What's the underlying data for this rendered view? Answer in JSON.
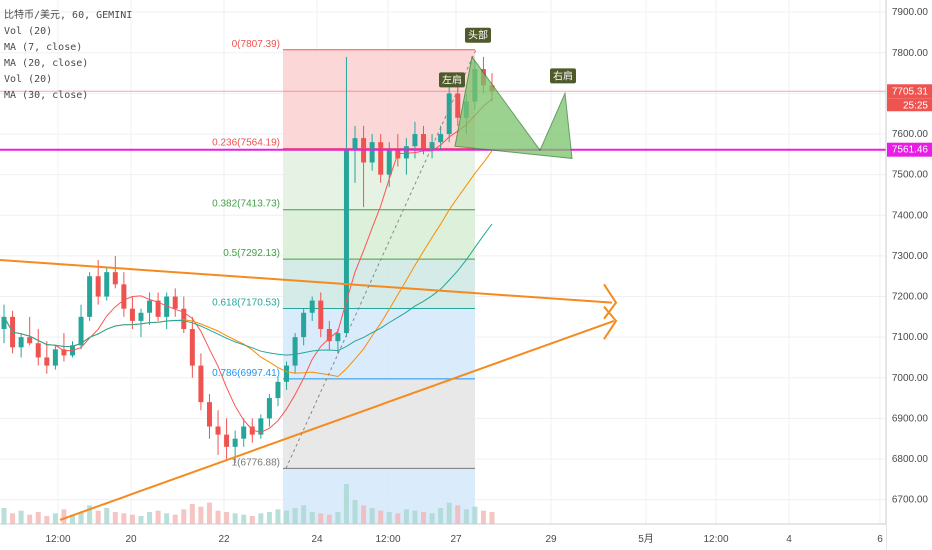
{
  "legend": {
    "symbol": "比特币/美元, 60, GEMINI",
    "vol1": "Vol (20)",
    "ma1": "MA (7, close)",
    "ma2": "MA (20, close)",
    "vol2": "Vol (20)",
    "ma3": "MA (30, close)"
  },
  "colors": {
    "up": "#26a69a",
    "down": "#ef5350",
    "ma7": "#ff5252",
    "ma20": "#fb8c00",
    "ma30": "#26a69a",
    "neckline": "#e91ee6",
    "trendline": "#f58a1f",
    "pattern_fill": "#7cc36a",
    "badge": "#4e5a2a"
  },
  "chart_data": {
    "type": "candlestick",
    "symbol": "比特币/美元",
    "interval": "60",
    "exchange": "GEMINI",
    "y_axis": {
      "ticks": [
        6700,
        6800,
        6900,
        7000,
        7100,
        7200,
        7300,
        7400,
        7500,
        7600,
        7700,
        7800,
        7900
      ],
      "tick_labels": [
        "6700.00",
        "6800.00",
        "6900.00",
        "7000.00",
        "7100.00",
        "7200.00",
        "7300.00",
        "7400.00",
        "7500.00",
        "7600.00",
        "7700.00",
        "7800.00",
        "7900.00"
      ],
      "range": [
        6640,
        7930
      ]
    },
    "x_axis": {
      "tick_labels": [
        "12:00",
        "20",
        "22",
        "24",
        "12:00",
        "27",
        "29",
        "5月",
        "12:00",
        "4",
        "6"
      ]
    },
    "price_markers": [
      {
        "value": 7705.31,
        "label": "7705.31",
        "countdown": "25:25",
        "color": "#ef5350"
      },
      {
        "value": 7561.46,
        "label": "7561.46",
        "color": "#e91ee6"
      }
    ],
    "fibonacci": {
      "high": 7807.39,
      "low": 6776.88,
      "levels": [
        {
          "ratio": 0,
          "price": 7807.39,
          "label": "0(7807.39)",
          "color": "#ef5350"
        },
        {
          "ratio": 0.236,
          "price": 7564.19,
          "label": "0.236(7564.19)",
          "color": "#ef5350"
        },
        {
          "ratio": 0.382,
          "price": 7413.73,
          "label": "0.382(7413.73)",
          "color": "#43a047"
        },
        {
          "ratio": 0.5,
          "price": 7292.13,
          "label": "0.5(7292.13)",
          "color": "#43a047"
        },
        {
          "ratio": 0.618,
          "price": 7170.53,
          "label": "0.618(7170.53)",
          "color": "#26a69a"
        },
        {
          "ratio": 0.786,
          "price": 6997.41,
          "label": "0.786(6997.41)",
          "color": "#2196f3"
        },
        {
          "ratio": 1,
          "price": 6776.88,
          "label": "1(6776.88)",
          "color": "#787878"
        }
      ]
    },
    "annotations": [
      {
        "label": "左肩",
        "role": "left-shoulder"
      },
      {
        "label": "头部",
        "role": "head"
      },
      {
        "label": "右肩",
        "role": "right-shoulder"
      }
    ],
    "candles": [
      [
        7120,
        7180,
        7085,
        7150
      ],
      [
        7150,
        7165,
        7060,
        7075
      ],
      [
        7075,
        7110,
        7050,
        7100
      ],
      [
        7100,
        7150,
        7080,
        7085
      ],
      [
        7085,
        7120,
        7030,
        7050
      ],
      [
        7050,
        7090,
        7010,
        7030
      ],
      [
        7030,
        7080,
        7020,
        7070
      ],
      [
        7070,
        7110,
        7040,
        7055
      ],
      [
        7055,
        7090,
        7050,
        7080
      ],
      [
        7080,
        7180,
        7070,
        7150
      ],
      [
        7150,
        7260,
        7140,
        7250
      ],
      [
        7250,
        7290,
        7180,
        7200
      ],
      [
        7200,
        7270,
        7190,
        7260
      ],
      [
        7260,
        7300,
        7220,
        7230
      ],
      [
        7230,
        7260,
        7150,
        7170
      ],
      [
        7170,
        7200,
        7120,
        7140
      ],
      [
        7140,
        7170,
        7100,
        7160
      ],
      [
        7160,
        7210,
        7130,
        7190
      ],
      [
        7190,
        7210,
        7140,
        7150
      ],
      [
        7150,
        7210,
        7120,
        7200
      ],
      [
        7200,
        7220,
        7150,
        7170
      ],
      [
        7170,
        7200,
        7110,
        7120
      ],
      [
        7120,
        7150,
        7000,
        7030
      ],
      [
        7030,
        7060,
        6920,
        6940
      ],
      [
        6940,
        6960,
        6850,
        6880
      ],
      [
        6880,
        6920,
        6810,
        6860
      ],
      [
        6860,
        6900,
        6800,
        6830
      ],
      [
        6830,
        6870,
        6790,
        6850
      ],
      [
        6850,
        6900,
        6830,
        6880
      ],
      [
        6880,
        6900,
        6840,
        6860
      ],
      [
        6860,
        6910,
        6850,
        6900
      ],
      [
        6900,
        6960,
        6880,
        6950
      ],
      [
        6950,
        7000,
        6930,
        6990
      ],
      [
        6990,
        7040,
        6970,
        7030
      ],
      [
        7030,
        7110,
        7010,
        7100
      ],
      [
        7100,
        7170,
        7080,
        7160
      ],
      [
        7160,
        7200,
        7140,
        7190
      ],
      [
        7190,
        7210,
        7100,
        7120
      ],
      [
        7120,
        7140,
        7070,
        7090
      ],
      [
        7090,
        7120,
        7060,
        7110
      ],
      [
        7110,
        7790,
        7100,
        7560
      ],
      [
        7560,
        7620,
        7480,
        7590
      ],
      [
        7590,
        7620,
        7420,
        7530
      ],
      [
        7530,
        7600,
        7510,
        7580
      ],
      [
        7580,
        7600,
        7480,
        7500
      ],
      [
        7500,
        7580,
        7470,
        7560
      ],
      [
        7560,
        7600,
        7520,
        7540
      ],
      [
        7540,
        7590,
        7500,
        7570
      ],
      [
        7570,
        7630,
        7540,
        7600
      ],
      [
        7600,
        7620,
        7550,
        7560
      ],
      [
        7560,
        7600,
        7540,
        7580
      ],
      [
        7580,
        7620,
        7560,
        7600
      ],
      [
        7600,
        7720,
        7580,
        7700
      ],
      [
        7700,
        7740,
        7620,
        7640
      ],
      [
        7640,
        7700,
        7600,
        7680
      ],
      [
        7680,
        7780,
        7660,
        7760
      ],
      [
        7760,
        7790,
        7700,
        7720
      ],
      [
        7720,
        7750,
        7680,
        7705
      ]
    ],
    "volumes": [
      12,
      8,
      10,
      7,
      9,
      6,
      8,
      11,
      7,
      9,
      14,
      10,
      12,
      9,
      8,
      7,
      6,
      9,
      10,
      8,
      7,
      11,
      15,
      13,
      16,
      10,
      9,
      8,
      7,
      6,
      8,
      9,
      11,
      10,
      12,
      14,
      9,
      8,
      7,
      9,
      30,
      18,
      14,
      12,
      10,
      9,
      8,
      11,
      10,
      9,
      8,
      12,
      16,
      14,
      11,
      13,
      10,
      9
    ]
  }
}
